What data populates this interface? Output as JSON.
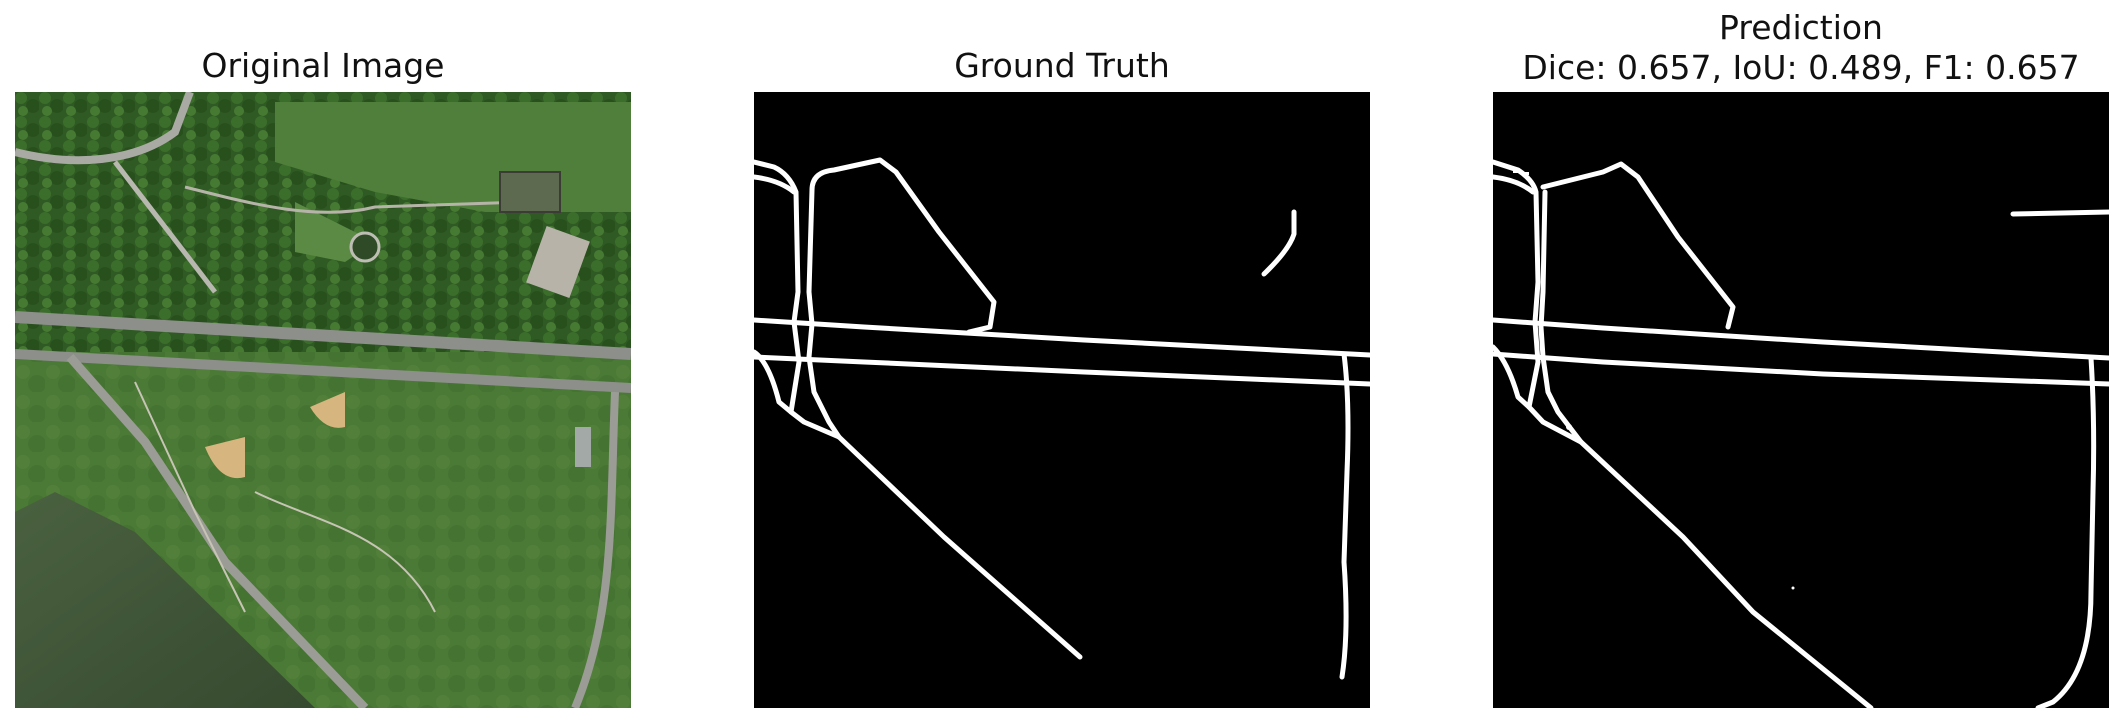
{
  "panels": {
    "original": {
      "title": "Original Image"
    },
    "ground_truth": {
      "title": "Ground Truth"
    },
    "prediction": {
      "title": "Prediction",
      "metrics": "Dice: 0.657, IoU: 0.489, F1: 0.657"
    }
  },
  "colors": {
    "background": "#ffffff",
    "mask_background": "#000000",
    "mask_road": "#ffffff",
    "grass": "#3f6f2e",
    "water": "#42573a",
    "path": "#c9c7bd",
    "baseball_field": "#d2b47c"
  }
}
